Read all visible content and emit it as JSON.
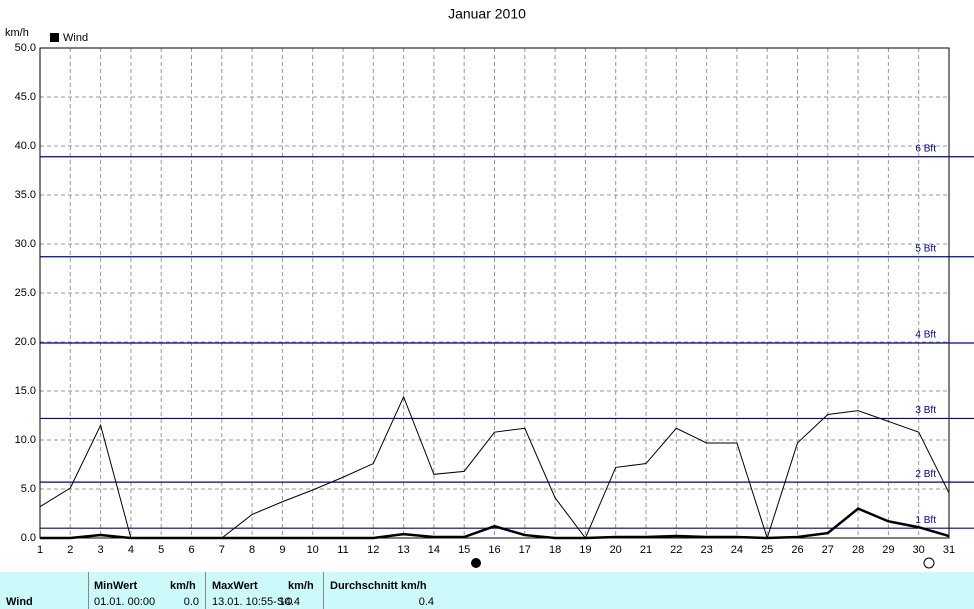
{
  "chart_data": {
    "type": "line",
    "title": "Januar 2010",
    "y_unit": "km/h",
    "x": [
      1,
      2,
      3,
      4,
      5,
      6,
      7,
      8,
      9,
      10,
      11,
      12,
      13,
      14,
      15,
      16,
      17,
      18,
      19,
      20,
      21,
      22,
      23,
      24,
      25,
      26,
      27,
      28,
      29,
      30,
      31
    ],
    "xlim": [
      1,
      31
    ],
    "xticks": [
      1,
      2,
      3,
      4,
      5,
      6,
      7,
      8,
      9,
      10,
      11,
      12,
      13,
      14,
      15,
      16,
      17,
      18,
      19,
      20,
      21,
      22,
      23,
      24,
      25,
      26,
      27,
      28,
      29,
      30,
      31
    ],
    "ylim": [
      0,
      50
    ],
    "yticks": [
      {
        "value": 0,
        "label": "0.0"
      },
      {
        "value": 5,
        "label": "5.0"
      },
      {
        "value": 10,
        "label": "10.0"
      },
      {
        "value": 15,
        "label": "15.0"
      },
      {
        "value": 20,
        "label": "20.0"
      },
      {
        "value": 25,
        "label": "25.0"
      },
      {
        "value": 30,
        "label": "30.0"
      },
      {
        "value": 35,
        "label": "35.0"
      },
      {
        "value": 40,
        "label": "40.0"
      },
      {
        "value": 45,
        "label": "45.0"
      },
      {
        "value": 50,
        "label": "50.0"
      }
    ],
    "grid": true,
    "series": [
      {
        "color": "#000000",
        "width": 1,
        "values": [
          3.2,
          5.1,
          11.5,
          0,
          0,
          0,
          0,
          2.4,
          3.7,
          4.9,
          6.2,
          7.6,
          14.4,
          6.5,
          6.8,
          10.8,
          11.2,
          4.1,
          0,
          7.2,
          7.6,
          11.2,
          9.7,
          9.7,
          0,
          9.7,
          12.6,
          13.0,
          11.9,
          10.8,
          4.6
        ]
      },
      {
        "name": "Wind",
        "color": "#000000",
        "width": 2.5,
        "values": [
          0,
          0,
          0.3,
          0,
          0,
          0,
          0,
          0,
          0,
          0,
          0,
          0,
          0.4,
          0.1,
          0.1,
          1.2,
          0.3,
          0,
          0,
          0.1,
          0.1,
          0.2,
          0.1,
          0.1,
          0,
          0.1,
          0.5,
          3.0,
          1.7,
          1.1,
          0.2
        ]
      }
    ],
    "reference_lines": {
      "color": "#0000a0",
      "lines": [
        {
          "value": 1.0,
          "label": "1 Bft"
        },
        {
          "value": 5.7,
          "label": "2 Bft"
        },
        {
          "value": 12.2,
          "label": "3 Bft"
        },
        {
          "value": 19.9,
          "label": "4 Bft"
        },
        {
          "value": 28.7,
          "label": "5 Bft"
        },
        {
          "value": 38.9,
          "label": "6 Bft"
        }
      ]
    }
  },
  "footer": {
    "row_label": "Wind",
    "headers": [
      "MinWert",
      "km/h",
      "MaxWert",
      "km/h",
      "Durchschnitt km/h"
    ],
    "values": [
      "01.01.  00:00",
      "0.0",
      "13.01.  10:55-SO",
      "14.4",
      "0.4"
    ]
  }
}
